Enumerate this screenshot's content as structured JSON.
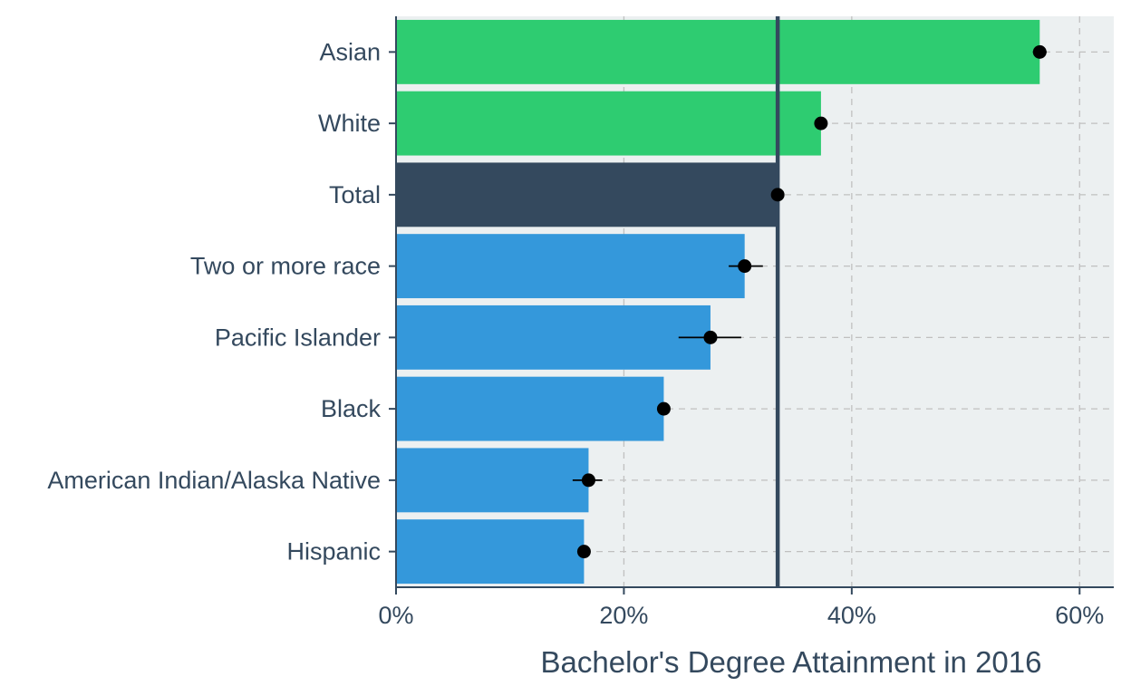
{
  "chart_data": {
    "type": "bar",
    "orientation": "horizontal",
    "title": "",
    "xlabel": "Bachelor's Degree Attainment in 2016",
    "ylabel": "",
    "xlim": [
      0,
      63
    ],
    "x_ticks": [
      0,
      20,
      40,
      60
    ],
    "x_tick_labels": [
      "0%",
      "20%",
      "40%",
      "60%"
    ],
    "grid": true,
    "reference_line": 33.5,
    "categories": [
      "Asian",
      "White",
      "Total",
      "Two or more race",
      "Pacific Islander",
      "Black",
      "American Indian/Alaska Native",
      "Hispanic"
    ],
    "values": [
      56.5,
      37.3,
      33.5,
      30.6,
      27.6,
      23.5,
      16.9,
      16.5
    ],
    "error_low": [
      55.9,
      37.0,
      33.3,
      29.2,
      24.8,
      23.2,
      15.5,
      16.1
    ],
    "error_high": [
      57.1,
      37.6,
      33.7,
      32.2,
      30.3,
      23.9,
      18.1,
      16.9
    ],
    "bar_colors": [
      "#2ecc71",
      "#2ecc71",
      "#34495e",
      "#3498db",
      "#3498db",
      "#3498db",
      "#3498db",
      "#3498db"
    ]
  },
  "colors": {
    "panel_background": "#ecf0f1",
    "grid": "#c0c0c0",
    "axis_text": "#34495e",
    "reference_line": "#34495e",
    "point": "#000000"
  }
}
